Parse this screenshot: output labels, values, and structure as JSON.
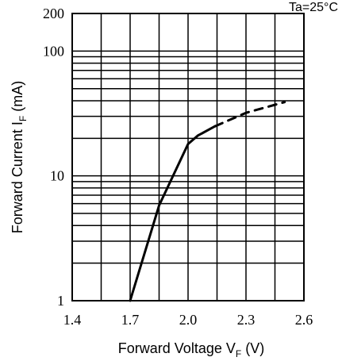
{
  "chart_data": {
    "type": "line",
    "condition": "Ta=25°C",
    "xlabel": {
      "main": "Forward Voltage",
      "symbol": "V",
      "sub": "F",
      "unit": "(V)"
    },
    "ylabel": {
      "main": "Forward Current",
      "symbol": "I",
      "sub": "F",
      "unit": "(mA)"
    },
    "xlim": [
      1.4,
      2.6
    ],
    "ylim": [
      1,
      200
    ],
    "yscale": "log",
    "x_tick_labels": [
      "1.4",
      "1.7",
      "2.0",
      "2.3",
      "2.6"
    ],
    "y_tick_labels": [
      "1",
      "10",
      "100",
      "200"
    ],
    "grid": true,
    "series": [
      {
        "style": "solid",
        "x": [
          1.7,
          1.85,
          2.0,
          2.05,
          2.14
        ],
        "y": [
          1,
          5.8,
          18,
          21,
          25
        ]
      },
      {
        "style": "dashed",
        "x": [
          2.14,
          2.3,
          2.5
        ],
        "y": [
          25,
          32,
          39
        ]
      }
    ]
  }
}
